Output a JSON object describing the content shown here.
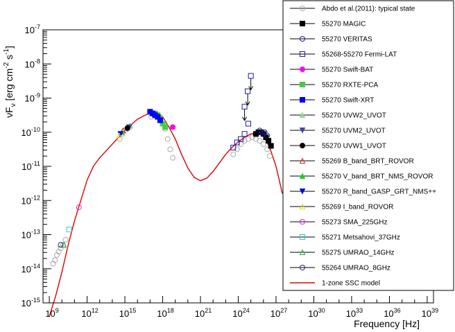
{
  "chart_data": {
    "type": "scatter",
    "title": "",
    "xlabel": "Frequency [Hz]",
    "ylabel_parts": [
      "νF",
      "ν",
      " [erg cm",
      "-2",
      " s",
      "-1",
      "]"
    ],
    "x_log10_range": [
      8.5,
      39.5
    ],
    "y_log10_range": [
      -15,
      -7
    ],
    "x_tick_labels": [
      {
        "base": "10",
        "exp": "9",
        "log": 9
      },
      {
        "base": "10",
        "exp": "12",
        "log": 12
      },
      {
        "base": "10",
        "exp": "15",
        "log": 15
      },
      {
        "base": "10",
        "exp": "18",
        "log": 18
      },
      {
        "base": "10",
        "exp": "21",
        "log": 21
      },
      {
        "base": "10",
        "exp": "24",
        "log": 24
      },
      {
        "base": "10",
        "exp": "27",
        "log": 27
      },
      {
        "base": "10",
        "exp": "30",
        "log": 30
      },
      {
        "base": "10",
        "exp": "33",
        "log": 33
      },
      {
        "base": "10",
        "exp": "36",
        "log": 36
      },
      {
        "base": "10",
        "exp": "39",
        "log": 39
      }
    ],
    "y_tick_labels": [
      {
        "base": "10",
        "exp": "-15",
        "log": -15
      },
      {
        "base": "10",
        "exp": "-14",
        "log": -14
      },
      {
        "base": "10",
        "exp": "-13",
        "log": -13
      },
      {
        "base": "10",
        "exp": "-12",
        "log": -12
      },
      {
        "base": "10",
        "exp": "-11",
        "log": -11
      },
      {
        "base": "10",
        "exp": "-10",
        "log": -10
      },
      {
        "base": "10",
        "exp": "-9",
        "log": -9
      },
      {
        "base": "10",
        "exp": "-8",
        "log": -8
      },
      {
        "base": "10",
        "exp": "-7",
        "log": -7
      }
    ],
    "legend_position": "top-right",
    "series": [
      {
        "name": "Abdo et al.(2011): typical state",
        "marker": "circle-open",
        "color": "#aaaaaa",
        "points": [
          [
            9.3,
            -13.85
          ],
          [
            9.45,
            -13.75
          ],
          [
            9.6,
            -13.6
          ],
          [
            9.75,
            -13.5
          ],
          [
            9.9,
            -13.4
          ],
          [
            10.1,
            -13.3
          ],
          [
            10.3,
            -13.15
          ],
          [
            14.6,
            -10.2
          ],
          [
            14.8,
            -10.05
          ],
          [
            15.0,
            -9.95
          ],
          [
            15.2,
            -9.9
          ],
          [
            15.4,
            -9.85
          ],
          [
            17.1,
            -9.55
          ],
          [
            17.3,
            -9.5
          ],
          [
            17.6,
            -9.55
          ],
          [
            17.8,
            -9.6
          ],
          [
            18.0,
            -9.7
          ],
          [
            18.2,
            -9.9
          ],
          [
            18.4,
            -10.2
          ],
          [
            18.6,
            -10.5
          ],
          [
            18.8,
            -10.75
          ],
          [
            23.6,
            -10.65
          ],
          [
            23.9,
            -10.5
          ],
          [
            24.2,
            -10.35
          ],
          [
            24.5,
            -10.25
          ],
          [
            24.8,
            -10.2
          ],
          [
            25.1,
            -10.15
          ],
          [
            25.4,
            -10.2
          ],
          [
            25.7,
            -10.25
          ],
          [
            26.0,
            -10.35
          ],
          [
            26.3,
            -10.5
          ],
          [
            26.5,
            -10.7
          ]
        ]
      },
      {
        "name": "55270 MAGIC",
        "marker": "square-filled",
        "color": "#000000",
        "points": [
          [
            25.4,
            -10.05
          ],
          [
            25.6,
            -10.0
          ],
          [
            25.8,
            -10.0
          ],
          [
            26.0,
            -10.05
          ],
          [
            26.2,
            -10.15
          ],
          [
            26.4,
            -10.25
          ],
          [
            26.6,
            -10.4
          ]
        ]
      },
      {
        "name": "55270 VERITAS",
        "marker": "circle-open",
        "color": "#1a1aa8",
        "points": [
          [
            25.7,
            -9.95
          ],
          [
            25.9,
            -10.0
          ],
          [
            26.1,
            -10.0
          ],
          [
            26.3,
            -10.1
          ]
        ]
      },
      {
        "name": "55268-55270 Fermi-LAT",
        "marker": "square-open",
        "color": "#1a1aa8",
        "points": [
          [
            23.6,
            -10.45
          ],
          [
            23.9,
            -10.3
          ],
          [
            24.2,
            -10.2
          ],
          [
            24.5,
            -10.05
          ],
          [
            24.8,
            -9.75
          ]
        ],
        "upper_limits": [
          [
            24.5,
            -9.25
          ],
          [
            24.75,
            -8.8
          ],
          [
            25.0,
            -8.35
          ]
        ]
      },
      {
        "name": "55270 Swift-BAT",
        "marker": "circle-filled",
        "color": "#ff00ff",
        "points": [
          [
            18.8,
            -9.85
          ]
        ]
      },
      {
        "name": "55270 RXTE-PCA",
        "marker": "square-filled",
        "color": "#44cc44",
        "points": [
          [
            17.4,
            -9.45
          ],
          [
            17.6,
            -9.5
          ],
          [
            17.8,
            -9.6
          ],
          [
            18.0,
            -9.75
          ],
          [
            18.2,
            -9.85
          ]
        ]
      },
      {
        "name": "55270 Swift-XRT",
        "marker": "square-filled",
        "color": "#0000ff",
        "points": [
          [
            17.0,
            -9.4
          ],
          [
            17.2,
            -9.45
          ],
          [
            17.4,
            -9.5
          ],
          [
            17.6,
            -9.55
          ],
          [
            17.8,
            -9.65
          ]
        ]
      },
      {
        "name": "55270 UVW2_UVOT",
        "marker": "triangle-up-filled",
        "color": "#88dd88",
        "points": [
          [
            15.4,
            -9.8
          ]
        ]
      },
      {
        "name": "55270 UVM2_UVOT",
        "marker": "triangle-down-filled",
        "color": "#4444aa",
        "points": [
          [
            15.35,
            -9.85
          ]
        ]
      },
      {
        "name": "55270 UVW1_UVOT",
        "marker": "circle-filled",
        "color": "#000000",
        "points": [
          [
            15.2,
            -9.88
          ]
        ]
      },
      {
        "name": "55269 B_band_BRT_ROVOR",
        "marker": "triangle-up-open",
        "color": "#dd2222",
        "points": [
          [
            14.85,
            -9.95
          ]
        ]
      },
      {
        "name": "55270 V_band_BRT_NMS_ROVOR",
        "marker": "triangle-up-filled",
        "color": "#22cc22",
        "points": [
          [
            14.75,
            -10.0
          ]
        ]
      },
      {
        "name": "55270 R_band_GASP_GRT_NMS++",
        "marker": "triangle-down-filled",
        "color": "#0000dd",
        "points": [
          [
            14.65,
            -10.05
          ]
        ]
      },
      {
        "name": "55269 I_band_ROVOR",
        "marker": "triangle-up-open",
        "color": "#dddd00",
        "points": [
          [
            14.55,
            -10.1
          ]
        ]
      },
      {
        "name": "55273 SMA_225GHz",
        "marker": "circle-open",
        "color": "#dd22dd",
        "points": [
          [
            11.35,
            -12.2
          ]
        ]
      },
      {
        "name": "55271 Metsahovi_37GHz",
        "marker": "square-open",
        "color": "#22cccc",
        "points": [
          [
            10.57,
            -12.85
          ]
        ]
      },
      {
        "name": "55275 UMRAO_14GHz",
        "marker": "triangle-up-open",
        "color": "#22aa44",
        "points": [
          [
            10.15,
            -13.3
          ]
        ]
      },
      {
        "name": "55264 UMRAO_8GHz",
        "marker": "circle-open",
        "color": "#222288",
        "points": [
          [
            9.9,
            -13.3
          ]
        ]
      },
      {
        "name": "1-zone SSC model",
        "marker": "line",
        "color": "#dd0000",
        "points": [
          [
            9.0,
            -15.4
          ],
          [
            9.5,
            -14.8
          ],
          [
            10.0,
            -14.1
          ],
          [
            10.5,
            -13.3
          ],
          [
            11.0,
            -12.6
          ],
          [
            11.5,
            -12.0
          ],
          [
            12.0,
            -11.4
          ],
          [
            12.5,
            -11.0
          ],
          [
            13.0,
            -10.75
          ],
          [
            13.5,
            -10.55
          ],
          [
            14.0,
            -10.35
          ],
          [
            14.5,
            -10.15
          ],
          [
            15.0,
            -9.95
          ],
          [
            15.5,
            -9.78
          ],
          [
            16.0,
            -9.62
          ],
          [
            16.5,
            -9.52
          ],
          [
            17.0,
            -9.44
          ],
          [
            17.3,
            -9.42
          ],
          [
            17.6,
            -9.44
          ],
          [
            18.0,
            -9.55
          ],
          [
            18.5,
            -9.85
          ],
          [
            19.0,
            -10.2
          ],
          [
            19.5,
            -10.65
          ],
          [
            20.0,
            -11.05
          ],
          [
            20.5,
            -11.32
          ],
          [
            21.0,
            -11.42
          ],
          [
            21.5,
            -11.35
          ],
          [
            22.0,
            -11.15
          ],
          [
            22.5,
            -10.9
          ],
          [
            23.0,
            -10.65
          ],
          [
            23.5,
            -10.45
          ],
          [
            24.0,
            -10.28
          ],
          [
            24.5,
            -10.15
          ],
          [
            25.0,
            -10.05
          ],
          [
            25.5,
            -10.02
          ],
          [
            26.0,
            -10.1
          ],
          [
            26.5,
            -10.45
          ],
          [
            27.0,
            -11.0
          ],
          [
            27.5,
            -11.8
          ]
        ]
      }
    ]
  }
}
